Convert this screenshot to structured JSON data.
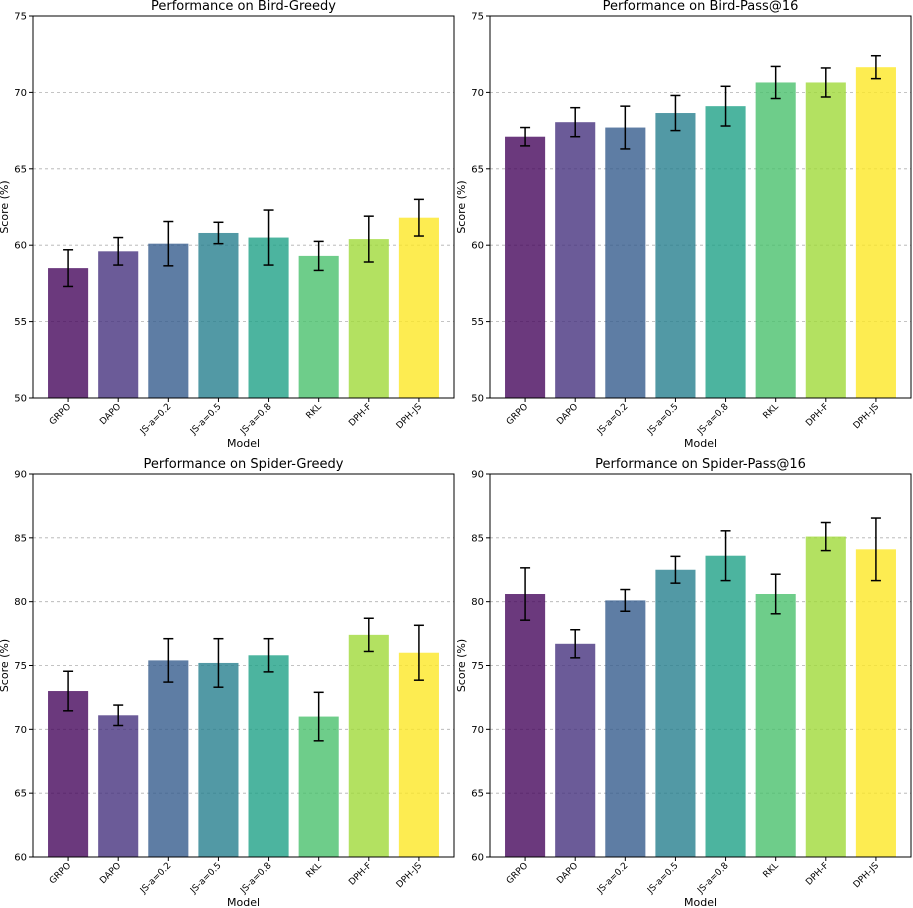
{
  "chart_data": [
    {
      "type": "bar",
      "title": "Performance on Bird-Greedy",
      "xlabel": "Model",
      "ylabel": "Score (%)",
      "ylim": [
        50,
        75
      ],
      "yticks": [
        50,
        55,
        60,
        65,
        70,
        75
      ],
      "grid": true,
      "categories": [
        "GRPO",
        "DAPO",
        "JS-a=0.2",
        "JS-a=0.5",
        "JS-a=0.8",
        "RKL",
        "DPH-F",
        "DPH-JS"
      ],
      "values": [
        58.5,
        59.6,
        60.1,
        60.8,
        60.5,
        59.3,
        60.4,
        61.8
      ],
      "errors": [
        1.2,
        0.9,
        1.45,
        0.7,
        1.8,
        0.95,
        1.5,
        1.2
      ]
    },
    {
      "type": "bar",
      "title": "Performance on Bird-Pass@16",
      "xlabel": "Model",
      "ylabel": "Score (%)",
      "ylim": [
        50,
        75
      ],
      "yticks": [
        50,
        55,
        60,
        65,
        70,
        75
      ],
      "grid": true,
      "categories": [
        "GRPO",
        "DAPO",
        "JS-a=0.2",
        "JS-a=0.5",
        "JS-a=0.8",
        "RKL",
        "DPH-F",
        "DPH-JS"
      ],
      "values": [
        67.1,
        68.05,
        67.7,
        68.65,
        69.1,
        70.65,
        70.65,
        71.65
      ],
      "errors": [
        0.6,
        0.95,
        1.4,
        1.15,
        1.3,
        1.05,
        0.95,
        0.75
      ]
    },
    {
      "type": "bar",
      "title": "Performance on Spider-Greedy",
      "xlabel": "Model",
      "ylabel": "Score (%)",
      "ylim": [
        60,
        90
      ],
      "yticks": [
        60,
        65,
        70,
        75,
        80,
        85,
        90
      ],
      "grid": true,
      "categories": [
        "GRPO",
        "DAPO",
        "JS-a=0.2",
        "JS-a=0.5",
        "JS-a=0.8",
        "RKL",
        "DPH-F",
        "DPH-JS"
      ],
      "values": [
        73.0,
        71.1,
        75.4,
        75.2,
        75.8,
        71.0,
        77.4,
        76.0
      ],
      "errors": [
        1.55,
        0.8,
        1.7,
        1.9,
        1.3,
        1.9,
        1.3,
        2.15
      ]
    },
    {
      "type": "bar",
      "title": "Performance on Spider-Pass@16",
      "xlabel": "Model",
      "ylabel": "Score (%)",
      "ylim": [
        60,
        90
      ],
      "yticks": [
        60,
        65,
        70,
        75,
        80,
        85,
        90
      ],
      "grid": true,
      "categories": [
        "GRPO",
        "DAPO",
        "JS-a=0.2",
        "JS-a=0.5",
        "JS-a=0.8",
        "RKL",
        "DPH-F",
        "DPH-JS"
      ],
      "values": [
        80.6,
        76.7,
        80.1,
        82.5,
        83.6,
        80.6,
        85.1,
        84.1
      ],
      "errors": [
        2.05,
        1.1,
        0.85,
        1.05,
        1.95,
        1.55,
        1.1,
        2.45
      ]
    }
  ],
  "colors": [
    "#46085c",
    "#46327e",
    "#365c8d",
    "#277f8e",
    "#1fa187",
    "#4ac16d",
    "#a0da39",
    "#fde725"
  ]
}
